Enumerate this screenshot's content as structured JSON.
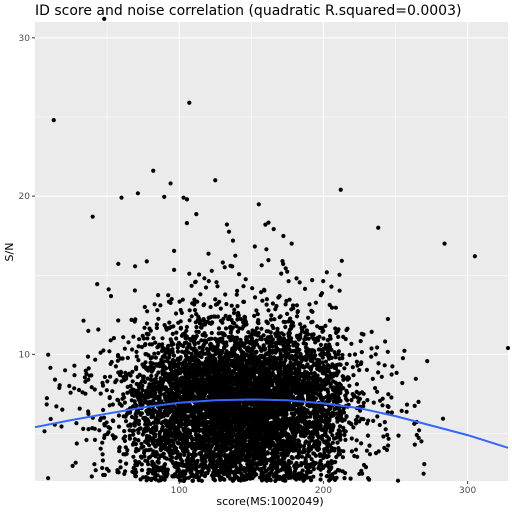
{
  "chart_data": {
    "type": "scatter",
    "title": "ID score and noise correlation (quadratic R.squared=0.0003)",
    "xlabel": "score(MS:1002049)",
    "ylabel": "S/N",
    "xlim": [
      0,
      328
    ],
    "ylim": [
      2,
      31
    ],
    "x_ticks": [
      100,
      200,
      300
    ],
    "y_ticks": [
      10,
      20,
      30
    ],
    "grid": true,
    "background_color": "#EBEBEB",
    "grid_color": "#FFFFFF",
    "point_color": "#000000",
    "fit_color": "#3366FF",
    "distribution": {
      "n_points": 7000,
      "x_center": 140,
      "x_spread": 45,
      "y_center": 6.8,
      "y_spread": 2.4,
      "y_min": 2
    },
    "outliers": [
      {
        "x": 48,
        "y": 31.2
      },
      {
        "x": 13,
        "y": 24.8
      },
      {
        "x": 107,
        "y": 25.9
      },
      {
        "x": 212,
        "y": 20.4
      },
      {
        "x": 238,
        "y": 18.0
      },
      {
        "x": 284,
        "y": 17.0
      },
      {
        "x": 305,
        "y": 16.2
      },
      {
        "x": 328,
        "y": 10.4
      },
      {
        "x": 82,
        "y": 21.6
      },
      {
        "x": 125,
        "y": 21.0
      },
      {
        "x": 60,
        "y": 19.9
      },
      {
        "x": 94,
        "y": 20.8
      },
      {
        "x": 103,
        "y": 19.9
      },
      {
        "x": 178,
        "y": 17.0
      },
      {
        "x": 40,
        "y": 18.7
      }
    ],
    "fit": {
      "x": [
        0,
        25,
        50,
        75,
        100,
        125,
        150,
        175,
        200,
        225,
        250,
        275,
        300,
        328
      ],
      "y": [
        5.4,
        5.85,
        6.25,
        6.65,
        6.95,
        7.1,
        7.15,
        7.1,
        6.9,
        6.6,
        6.1,
        5.5,
        4.9,
        4.1
      ]
    }
  }
}
